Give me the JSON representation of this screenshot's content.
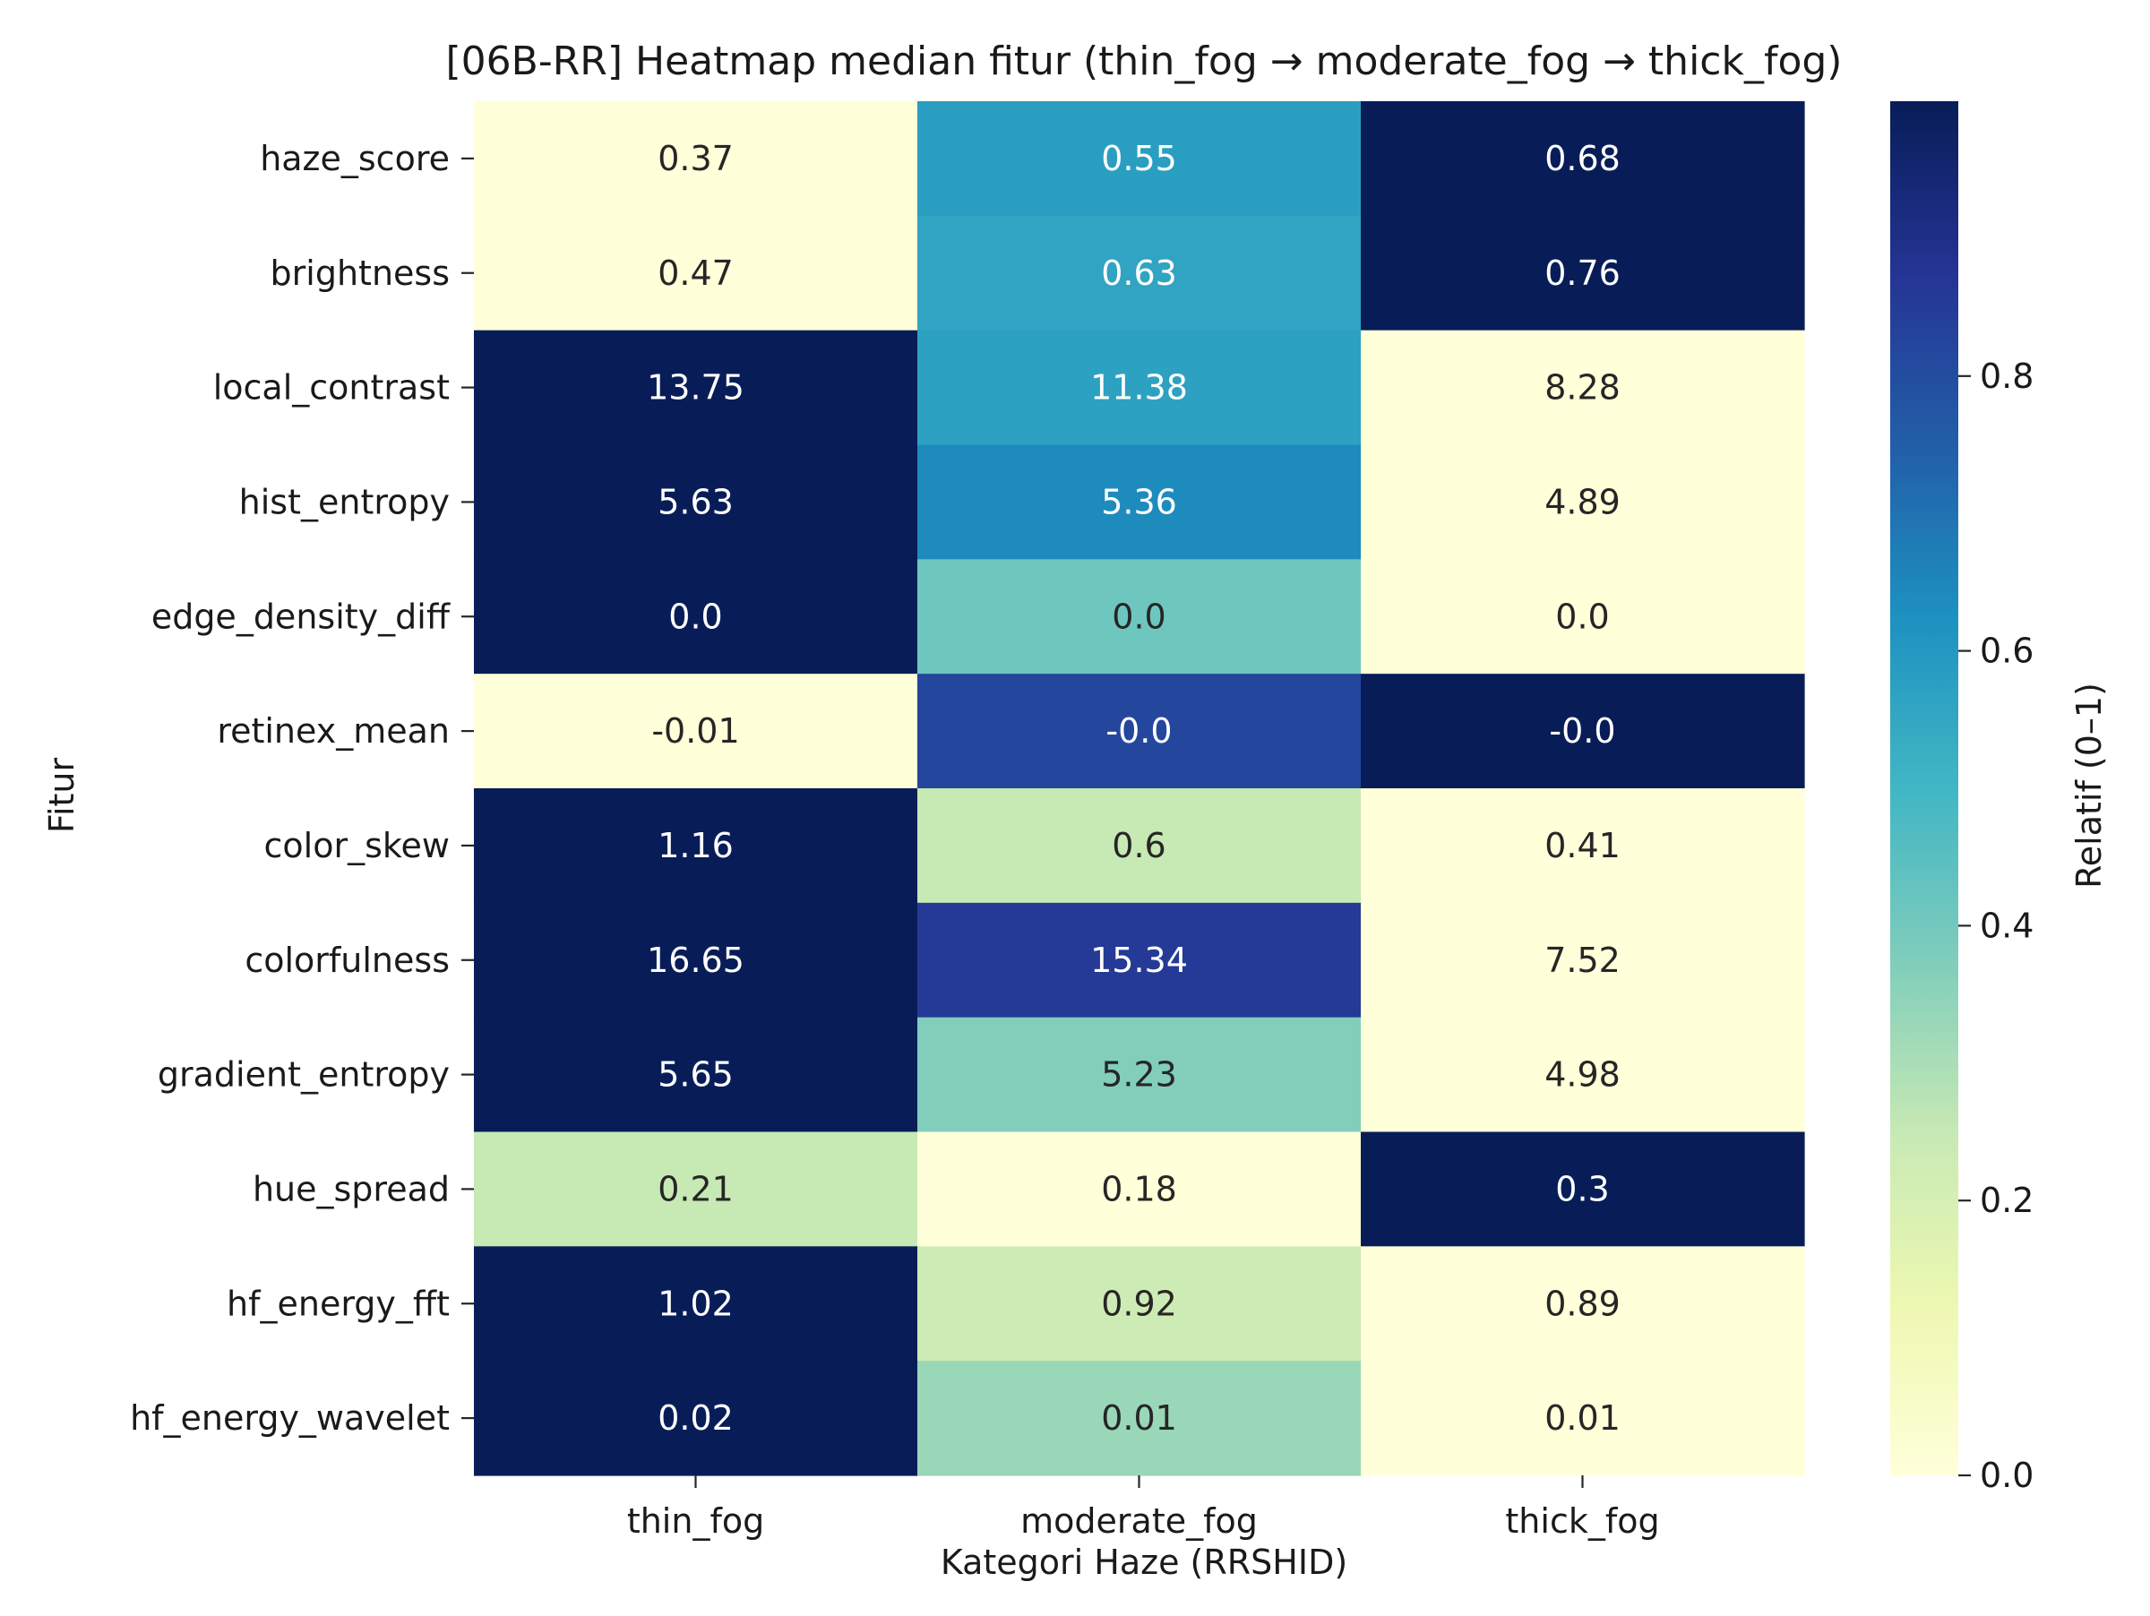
{
  "chart_data": {
    "type": "heatmap",
    "title": "[06B-RR] Heatmap median fitur (thin_fog → moderate_fog → thick_fog)",
    "xlabel": "Kategori Haze (RRSHID)",
    "ylabel": "Fitur",
    "colorbar_label": "Relatif (0–1)",
    "colormap": "YlGnBu",
    "color_range": [
      0.0,
      1.0
    ],
    "colorbar_ticks": [
      "0.0",
      "0.2",
      "0.4",
      "0.6",
      "0.8"
    ],
    "categories": [
      "thin_fog",
      "moderate_fog",
      "thick_fog"
    ],
    "rows": [
      {
        "name": "haze_score",
        "labels": [
          "0.37",
          "0.55",
          "0.68"
        ],
        "relative": [
          0.0,
          0.58,
          1.0
        ]
      },
      {
        "name": "brightness",
        "labels": [
          "0.47",
          "0.63",
          "0.76"
        ],
        "relative": [
          0.0,
          0.56,
          1.0
        ]
      },
      {
        "name": "local_contrast",
        "labels": [
          "13.75",
          "11.38",
          "8.28"
        ],
        "relative": [
          1.0,
          0.57,
          0.0
        ]
      },
      {
        "name": "hist_entropy",
        "labels": [
          "5.63",
          "5.36",
          "4.89"
        ],
        "relative": [
          1.0,
          0.64,
          0.0
        ]
      },
      {
        "name": "edge_density_diff",
        "labels": [
          "0.0",
          "0.0",
          "0.0"
        ],
        "relative": [
          1.0,
          0.41,
          0.0
        ]
      },
      {
        "name": "retinex_mean",
        "labels": [
          "-0.01",
          "-0.0",
          "-0.0"
        ],
        "relative": [
          0.0,
          0.82,
          1.0
        ]
      },
      {
        "name": "color_skew",
        "labels": [
          "1.16",
          "0.6",
          "0.41"
        ],
        "relative": [
          1.0,
          0.25,
          0.0
        ]
      },
      {
        "name": "colorfulness",
        "labels": [
          "16.65",
          "15.34",
          "7.52"
        ],
        "relative": [
          1.0,
          0.86,
          0.0
        ]
      },
      {
        "name": "gradient_entropy",
        "labels": [
          "5.65",
          "5.23",
          "4.98"
        ],
        "relative": [
          1.0,
          0.37,
          0.0
        ]
      },
      {
        "name": "hue_spread",
        "labels": [
          "0.21",
          "0.18",
          "0.3"
        ],
        "relative": [
          0.25,
          0.0,
          1.0
        ]
      },
      {
        "name": "hf_energy_fft",
        "labels": [
          "1.02",
          "0.92",
          "0.89"
        ],
        "relative": [
          1.0,
          0.23,
          0.0
        ]
      },
      {
        "name": "hf_energy_wavelet",
        "labels": [
          "0.02",
          "0.01",
          "0.01"
        ],
        "relative": [
          1.0,
          0.33,
          0.0
        ]
      }
    ]
  }
}
